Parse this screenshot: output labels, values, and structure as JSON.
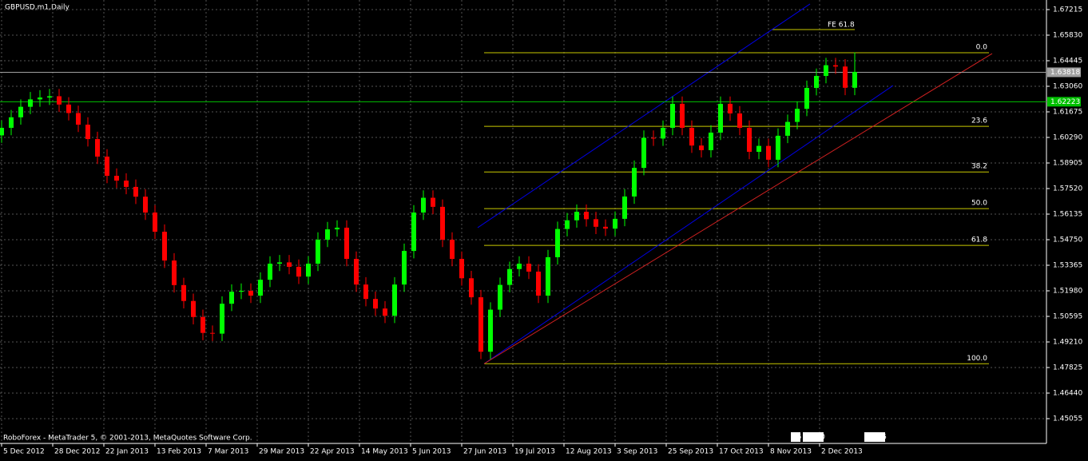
{
  "chart_data": {
    "type": "candlestick",
    "title": "GBPUSD,m1,Daily",
    "footer": "RoboForex - MetaTrader 5, © 2001-2013, MetaQuotes Software Corp.",
    "status": [
      "15",
      "17:00",
      "02:05"
    ],
    "up_color": "#00ff00",
    "down_color": "#ff0000",
    "grid": true,
    "xlim": [
      -0.5,
      327
    ],
    "ylim": [
      1.43713,
      1.67734
    ],
    "yticks": [
      1.67215,
      {
        "value": 1.6583,
        "label": "1.65830"
      },
      1.64445,
      {
        "value": 1.6306,
        "label": "1.63060"
      },
      1.61675,
      {
        "value": 1.6029,
        "label": "1.60290"
      },
      1.58905,
      {
        "value": 1.5752,
        "label": "1.57520"
      },
      1.56135,
      {
        "value": 1.5475,
        "label": "1.54750"
      },
      1.53365,
      {
        "value": 1.5198,
        "label": "1.51980"
      },
      1.50595,
      {
        "value": 1.4921,
        "label": "1.49210"
      },
      1.47825,
      {
        "value": 1.4644,
        "label": "1.46440"
      },
      1.45055
    ],
    "xticks": [
      {
        "value": 0,
        "label": "5 Dec 2012"
      },
      {
        "value": 16,
        "label": "28 Dec 2012"
      },
      {
        "value": 32,
        "label": "22 Jan 2013"
      },
      {
        "value": 48,
        "label": "13 Feb 2013"
      },
      {
        "value": 64,
        "label": "7 Mar 2013"
      },
      {
        "value": 80,
        "label": "29 Mar 2013"
      },
      {
        "value": 96,
        "label": "22 Apr 2013"
      },
      {
        "value": 112,
        "label": "14 May 2013"
      },
      {
        "value": 128,
        "label": "5 Jun 2013"
      },
      {
        "value": 144,
        "label": "27 Jun 2013"
      },
      {
        "value": 160,
        "label": "19 Jul 2013"
      },
      {
        "value": 176,
        "label": "12 Aug 2013"
      },
      {
        "value": 192,
        "label": "3 Sep 2013"
      },
      {
        "value": 208,
        "label": "25 Sep 2013"
      },
      {
        "value": 224,
        "label": "17 Oct 2013"
      },
      {
        "value": 240,
        "label": "8 Nov 2013"
      },
      {
        "value": 256,
        "label": "2 Dec 2013"
      }
    ],
    "x": [
      0,
      3,
      6,
      9,
      12,
      15,
      18,
      21,
      24,
      27,
      30,
      33,
      36,
      39,
      42,
      45,
      48,
      51,
      54,
      57,
      60,
      63,
      66,
      69,
      72,
      75,
      78,
      81,
      84,
      87,
      90,
      93,
      96,
      99,
      102,
      105,
      108,
      111,
      114,
      117,
      120,
      123,
      126,
      129,
      132,
      135,
      138,
      141,
      144,
      147,
      150,
      153,
      156,
      159,
      162,
      165,
      168,
      171,
      174,
      177,
      180,
      183,
      186,
      189,
      192,
      195,
      198,
      201,
      204,
      207,
      210,
      213,
      216,
      219,
      222,
      225,
      228,
      231,
      234,
      237,
      240,
      243,
      246,
      249,
      252,
      255,
      258,
      261,
      264,
      267
    ],
    "open": [
      1.604,
      1.6081,
      1.6138,
      1.6195,
      1.6235,
      1.6245,
      1.6252,
      1.6207,
      1.6161,
      1.6098,
      1.602,
      1.5925,
      1.5821,
      1.5795,
      1.5761,
      1.5708,
      1.5622,
      1.5518,
      1.5362,
      1.5229,
      1.5143,
      1.5056,
      1.497,
      1.4966,
      1.5128,
      1.5193,
      1.5198,
      1.5172,
      1.5258,
      1.5345,
      1.5352,
      1.5328,
      1.5275,
      1.5345,
      1.5475,
      1.5531,
      1.554,
      1.5371,
      1.5232,
      1.5154,
      1.5102,
      1.5063,
      1.5232,
      1.5414,
      1.5622,
      1.5702,
      1.5653,
      1.5475,
      1.5371,
      1.5266,
      1.5163,
      1.4868,
      1.5096,
      1.523,
      1.5316,
      1.5345,
      1.5302,
      1.5172,
      1.538,
      1.5533,
      1.558,
      1.5626,
      1.5586,
      1.5545,
      1.5535,
      1.5588,
      1.5709,
      1.5864,
      1.6027,
      1.6023,
      1.6081,
      1.6211,
      1.6081,
      1.5985,
      1.596,
      1.6055,
      1.6211,
      1.6159,
      1.6081,
      1.5951,
      1.5983,
      1.5908,
      1.6038,
      1.6113,
      1.6184,
      1.6297,
      1.6362,
      1.642,
      1.6413,
      1.6298
    ],
    "high": [
      1.6121,
      1.6178,
      1.6235,
      1.6275,
      1.6285,
      1.6292,
      1.6292,
      1.6247,
      1.6201,
      1.6138,
      1.606,
      1.5965,
      1.5861,
      1.5835,
      1.5801,
      1.5748,
      1.5662,
      1.5558,
      1.5402,
      1.5269,
      1.5183,
      1.5096,
      1.501,
      1.5168,
      1.5233,
      1.5238,
      1.5238,
      1.5298,
      1.5385,
      1.5392,
      1.5392,
      1.5368,
      1.5385,
      1.5515,
      1.5571,
      1.558,
      1.558,
      1.5411,
      1.5272,
      1.5194,
      1.5142,
      1.5272,
      1.5454,
      1.5662,
      1.5742,
      1.5742,
      1.5693,
      1.5515,
      1.5411,
      1.5306,
      1.5203,
      1.5136,
      1.527,
      1.5356,
      1.5385,
      1.5385,
      1.5342,
      1.542,
      1.5573,
      1.562,
      1.5666,
      1.5666,
      1.5626,
      1.5585,
      1.5628,
      1.5749,
      1.5904,
      1.6067,
      1.6067,
      1.6121,
      1.6251,
      1.6251,
      1.6121,
      1.6025,
      1.6095,
      1.6251,
      1.6251,
      1.6199,
      1.6121,
      1.6023,
      1.6023,
      1.6078,
      1.6153,
      1.6224,
      1.6337,
      1.6402,
      1.646,
      1.646,
      1.6453,
      1.649
    ],
    "low": [
      1.6,
      1.6041,
      1.6098,
      1.6155,
      1.6195,
      1.6205,
      1.6167,
      1.6121,
      1.6058,
      1.598,
      1.5885,
      1.5781,
      1.5755,
      1.5721,
      1.5668,
      1.5582,
      1.5478,
      1.5322,
      1.5189,
      1.5103,
      1.5016,
      1.493,
      1.4926,
      1.4926,
      1.5088,
      1.5153,
      1.5132,
      1.5132,
      1.5218,
      1.5305,
      1.5288,
      1.5235,
      1.5235,
      1.5305,
      1.5435,
      1.5491,
      1.5331,
      1.5192,
      1.5114,
      1.5062,
      1.5023,
      1.5023,
      1.5192,
      1.5374,
      1.5582,
      1.5613,
      1.5435,
      1.5331,
      1.5226,
      1.5123,
      1.4828,
      1.4828,
      1.5056,
      1.519,
      1.5276,
      1.5262,
      1.5132,
      1.5132,
      1.534,
      1.5493,
      1.554,
      1.5546,
      1.5505,
      1.5495,
      1.5495,
      1.5548,
      1.5669,
      1.5824,
      1.5983,
      1.5983,
      1.6041,
      1.6041,
      1.5945,
      1.592,
      1.592,
      1.6015,
      1.6119,
      1.6041,
      1.5911,
      1.5911,
      1.5868,
      1.5868,
      1.5998,
      1.6073,
      1.6144,
      1.6257,
      1.6322,
      1.6373,
      1.6258,
      1.6258
    ],
    "close": [
      1.6081,
      1.6138,
      1.6195,
      1.6235,
      1.6245,
      1.6252,
      1.6207,
      1.6161,
      1.6098,
      1.602,
      1.5925,
      1.5821,
      1.5795,
      1.5761,
      1.5708,
      1.5622,
      1.5518,
      1.5362,
      1.5229,
      1.5143,
      1.5056,
      1.497,
      1.4966,
      1.5128,
      1.5193,
      1.5198,
      1.5172,
      1.5258,
      1.5345,
      1.5352,
      1.5328,
      1.5275,
      1.5345,
      1.5475,
      1.5531,
      1.554,
      1.5371,
      1.5232,
      1.5154,
      1.5102,
      1.5063,
      1.5232,
      1.5414,
      1.5622,
      1.5702,
      1.5653,
      1.5475,
      1.5371,
      1.5266,
      1.5163,
      1.4868,
      1.5096,
      1.523,
      1.5316,
      1.5345,
      1.5302,
      1.5172,
      1.538,
      1.5533,
      1.558,
      1.5626,
      1.5586,
      1.5545,
      1.5535,
      1.5588,
      1.5709,
      1.5864,
      1.6027,
      1.6023,
      1.6081,
      1.6211,
      1.6081,
      1.5985,
      1.596,
      1.6055,
      1.6211,
      1.6159,
      1.6081,
      1.5951,
      1.5983,
      1.5908,
      1.6038,
      1.6113,
      1.6184,
      1.6297,
      1.6362,
      1.642,
      1.6413,
      1.6298,
      1.6384
    ],
    "price_lines": [
      {
        "value": 1.63818,
        "color": "#a0a0a0",
        "text_color": "#ffffff"
      },
      {
        "value": 1.62223,
        "color": "#00c000",
        "text_color": "#000000"
      }
    ],
    "fibo": {
      "color": "#c8c800",
      "x": [
        151,
        309
      ],
      "levels": [
        {
          "label": "0.0",
          "price": 1.6488
        },
        {
          "label": "23.6",
          "price": 1.6089
        },
        {
          "label": "38.2",
          "price": 1.5842
        },
        {
          "label": "50.0",
          "price": 1.5643
        },
        {
          "label": "61.8",
          "price": 1.5444
        },
        {
          "label": "100.0",
          "price": 1.4803
        }
      ]
    },
    "fe": {
      "label": "FE 61.8",
      "price": 1.6613,
      "x": [
        241,
        267
      ],
      "color": "#c8c800"
    },
    "trendlines": [
      {
        "color": "#0000e0",
        "x": [
          149,
          253
        ],
        "y": [
          1.554,
          1.6752
        ]
      },
      {
        "color": "#0000e0",
        "x": [
          151,
          279
        ],
        "y": [
          1.4803,
          1.631
        ]
      },
      {
        "color": "#d02020",
        "x": [
          151,
          310
        ],
        "y": [
          1.4803,
          1.6483
        ]
      }
    ]
  }
}
